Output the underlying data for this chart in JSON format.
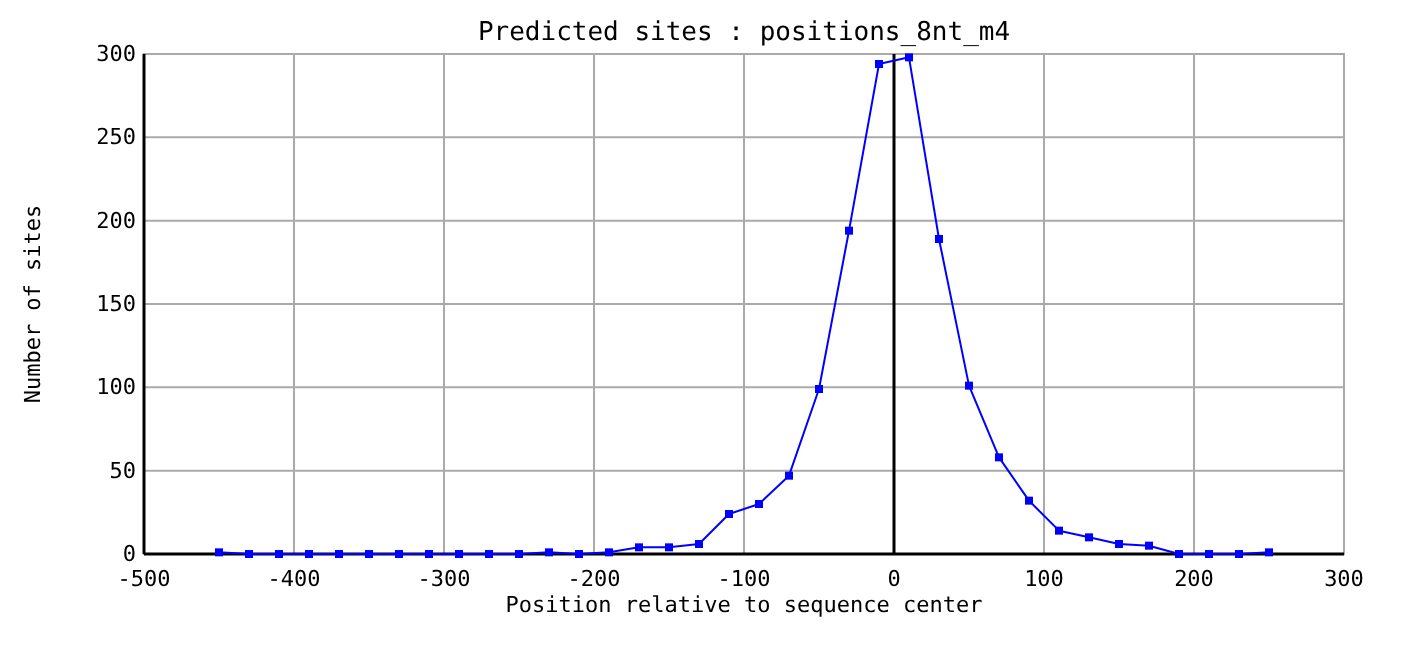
{
  "chart_data": {
    "type": "line",
    "title": "Predicted sites : positions_8nt_m4",
    "xlabel": "Position relative to sequence center",
    "ylabel": "Number of sites",
    "x": [
      -450,
      -430,
      -410,
      -390,
      -370,
      -350,
      -330,
      -310,
      -290,
      -270,
      -250,
      -230,
      -210,
      -190,
      -170,
      -150,
      -130,
      -110,
      -90,
      -70,
      -50,
      -30,
      -10,
      10,
      30,
      50,
      70,
      90,
      110,
      130,
      150,
      170,
      190,
      210,
      230,
      250
    ],
    "series": [
      {
        "color": "#0000ff",
        "values": [
          1,
          0,
          0,
          0,
          0,
          0,
          0,
          0,
          0,
          0,
          0,
          1,
          0,
          1,
          4,
          4,
          6,
          24,
          30,
          47,
          99,
          194,
          294,
          298,
          189,
          101,
          58,
          32,
          14,
          10,
          6,
          5,
          0,
          0,
          0,
          1
        ]
      }
    ],
    "xlim": [
      -500,
      300
    ],
    "xticks": [
      -500,
      -400,
      -300,
      -200,
      -100,
      0,
      100,
      200,
      300
    ],
    "ylim": [
      0,
      300
    ],
    "yticks": [
      0,
      50,
      100,
      150,
      200,
      250,
      300
    ],
    "grid": true,
    "marker": "square",
    "line_style": "solid",
    "ref_lines": [
      {
        "axis": "x",
        "value": 0,
        "color": "#000000"
      }
    ]
  }
}
